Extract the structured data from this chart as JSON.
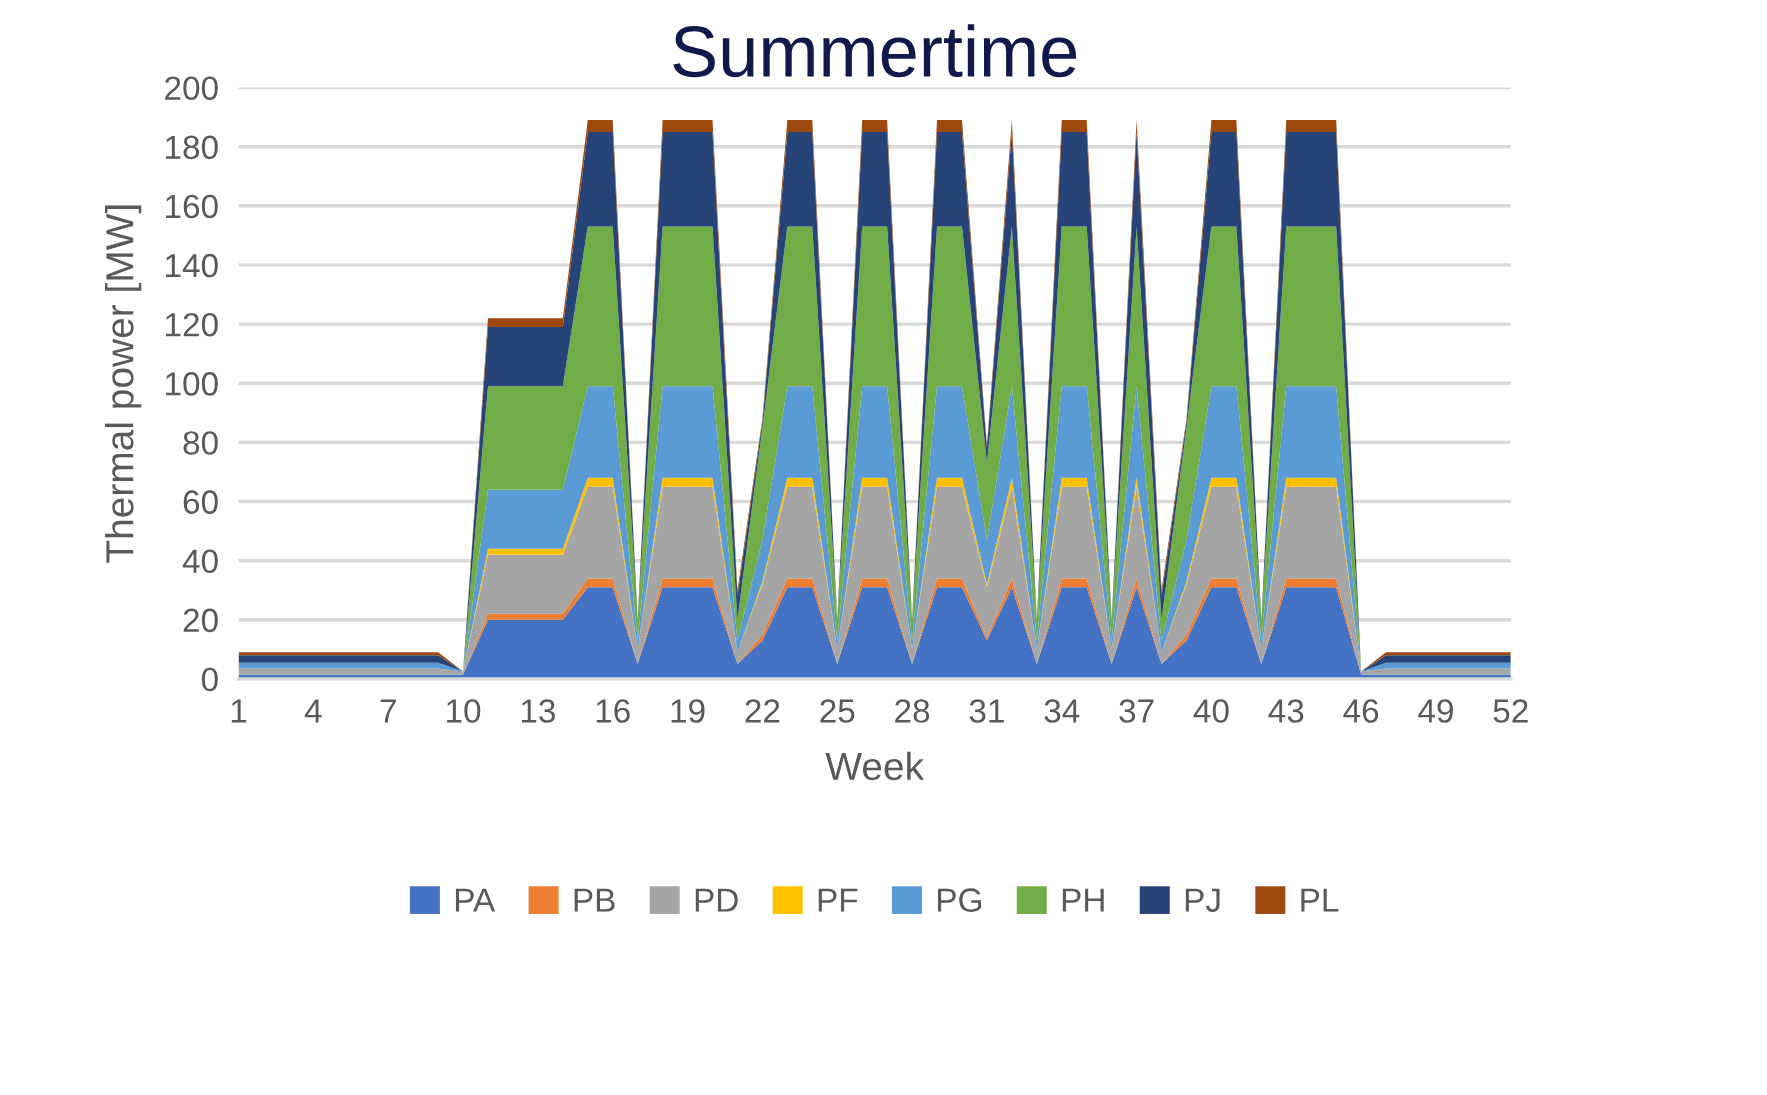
{
  "chart_data": {
    "type": "area",
    "stacked": true,
    "title": "Summertime",
    "xlabel": "Week",
    "ylabel": "Thermal power [MW]",
    "x": [
      1,
      2,
      3,
      4,
      5,
      6,
      7,
      8,
      9,
      10,
      11,
      12,
      13,
      14,
      15,
      16,
      17,
      18,
      19,
      20,
      21,
      22,
      23,
      24,
      25,
      26,
      27,
      28,
      29,
      30,
      31,
      32,
      33,
      34,
      35,
      36,
      37,
      38,
      39,
      40,
      41,
      42,
      43,
      44,
      45,
      46,
      47,
      48,
      49,
      50,
      51,
      52
    ],
    "xlim": [
      1,
      52
    ],
    "xticks": [
      1,
      4,
      7,
      10,
      13,
      16,
      19,
      22,
      25,
      28,
      31,
      34,
      37,
      40,
      43,
      46,
      49,
      52
    ],
    "ylim": [
      0,
      200
    ],
    "yticks": [
      0,
      20,
      40,
      60,
      80,
      100,
      120,
      140,
      160,
      180,
      200
    ],
    "grid": "y",
    "legend": "bottom",
    "series": [
      {
        "name": "PA",
        "color": "#4472c4",
        "values": [
          1.5,
          1.5,
          1.5,
          1.5,
          1.5,
          1.5,
          1.5,
          1.5,
          1.5,
          1.5,
          20,
          20,
          20,
          20,
          31,
          31,
          5,
          31,
          31,
          31,
          5,
          13,
          31,
          31,
          5,
          31,
          31,
          5,
          31,
          31,
          13,
          31,
          5,
          31,
          31,
          5,
          31,
          5,
          13,
          31,
          31,
          5,
          31,
          31,
          31,
          1.5,
          1.5,
          1.5,
          1.5,
          1.5,
          1.5,
          1.5
        ]
      },
      {
        "name": "PB",
        "color": "#ed7d31",
        "values": [
          0,
          0,
          0,
          0,
          0,
          0,
          0,
          0,
          0,
          0,
          2,
          2,
          2,
          2,
          3,
          3,
          0,
          3,
          3,
          3,
          0,
          2,
          3,
          3,
          0,
          3,
          3,
          0,
          3,
          3,
          1,
          3,
          0,
          3,
          3,
          0,
          3,
          0,
          2,
          3,
          3,
          0,
          3,
          3,
          3,
          0,
          0,
          0,
          0,
          0,
          0,
          0
        ]
      },
      {
        "name": "PD",
        "color": "#a5a5a5",
        "values": [
          2,
          2,
          2,
          2,
          2,
          2,
          2,
          2,
          2,
          1,
          20,
          20,
          20,
          20,
          31,
          31,
          5,
          31,
          31,
          31,
          4,
          17,
          31,
          31,
          5,
          31,
          31,
          5,
          31,
          31,
          17,
          31,
          5,
          31,
          31,
          5,
          31,
          4,
          17,
          31,
          31,
          5,
          31,
          31,
          31,
          1,
          2,
          2,
          2,
          2,
          2,
          2
        ]
      },
      {
        "name": "PF",
        "color": "#ffc000",
        "values": [
          0,
          0,
          0,
          0,
          0,
          0,
          0,
          0,
          0,
          0,
          2,
          2,
          2,
          2,
          3,
          3,
          0,
          3,
          3,
          3,
          0,
          1,
          3,
          3,
          0,
          3,
          3,
          0,
          3,
          3,
          1,
          3,
          0,
          3,
          3,
          0,
          3,
          0,
          1,
          3,
          3,
          0,
          3,
          3,
          3,
          0,
          0,
          0,
          0,
          0,
          0,
          0
        ]
      },
      {
        "name": "PG",
        "color": "#5b9bd5",
        "values": [
          2,
          2,
          2,
          2,
          2,
          2,
          2,
          2,
          2,
          0,
          20,
          20,
          20,
          20,
          31,
          31,
          3,
          31,
          31,
          31,
          4,
          14,
          31,
          31,
          3,
          31,
          31,
          3,
          31,
          31,
          15,
          31,
          3,
          31,
          31,
          3,
          31,
          4,
          14,
          31,
          31,
          3,
          31,
          31,
          31,
          0,
          2,
          2,
          2,
          2,
          2,
          2
        ]
      },
      {
        "name": "PH",
        "color": "#70ad47",
        "values": [
          0,
          0,
          0,
          0,
          0,
          0,
          0,
          0,
          0,
          0,
          35,
          35,
          35,
          35,
          54,
          54,
          7,
          54,
          54,
          54,
          7,
          38,
          54,
          54,
          7,
          54,
          54,
          7,
          54,
          54,
          26,
          54,
          7,
          54,
          54,
          7,
          54,
          7,
          38,
          54,
          54,
          7,
          54,
          54,
          54,
          0,
          0,
          0,
          0,
          0,
          0,
          0
        ]
      },
      {
        "name": "PJ",
        "color": "#264478",
        "values": [
          2.5,
          2.5,
          2.5,
          2.5,
          2.5,
          2.5,
          2.5,
          2.5,
          2.5,
          0,
          20,
          20,
          20,
          20,
          32,
          32,
          0,
          32,
          32,
          32,
          8,
          2,
          32,
          32,
          0,
          32,
          32,
          0,
          32,
          32,
          5,
          32,
          0,
          32,
          32,
          0,
          32,
          8,
          2,
          32,
          32,
          0,
          32,
          32,
          32,
          0,
          2.5,
          2.5,
          2.5,
          2.5,
          2.5,
          2.5
        ]
      },
      {
        "name": "PL",
        "color": "#9e480e",
        "values": [
          1,
          1,
          1,
          1,
          1,
          1,
          1,
          1,
          1,
          0,
          3,
          3,
          3,
          3,
          4,
          4,
          0,
          4,
          4,
          4,
          2,
          1,
          4,
          4,
          0,
          4,
          4,
          0,
          4,
          4,
          1,
          4,
          0,
          4,
          4,
          0,
          4,
          2,
          1,
          4,
          4,
          0,
          4,
          4,
          4,
          0,
          1,
          1,
          1,
          1,
          1,
          1
        ]
      }
    ]
  }
}
